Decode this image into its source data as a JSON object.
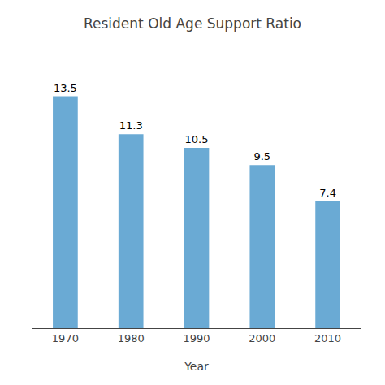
{
  "chart_data": {
    "type": "bar",
    "title": "Resident Old Age Support Ratio",
    "xlabel": "Year",
    "categories": [
      "1970",
      "1980",
      "1990",
      "2000",
      "2010"
    ],
    "values": [
      13.5,
      11.3,
      10.5,
      9.5,
      7.4
    ],
    "color": "#6aaad4",
    "ylim": [
      0,
      15.8
    ],
    "grid": false,
    "data_labels": true,
    "tick_labels": "x"
  }
}
